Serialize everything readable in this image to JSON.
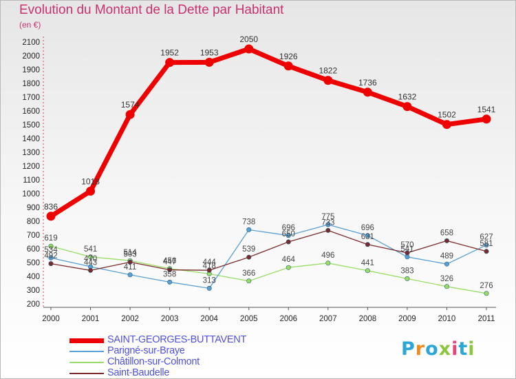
{
  "title": "Evolution du Montant de la Dette par Habitant",
  "subtitle": "(en €)",
  "logo": {
    "letters": [
      "P",
      "r",
      "o",
      "x",
      "i",
      "t",
      "i"
    ],
    "colors": [
      "#2ca6d8",
      "#ef8a1e",
      "#2ca6d8",
      "#8cc63f",
      "#e8447a",
      "#2ca6d8",
      "#8cc63f"
    ]
  },
  "chart_data": {
    "type": "line",
    "title": "Evolution du Montant de la Dette par Habitant",
    "ylabel": "(en €)",
    "x": [
      "2000",
      "2001",
      "2002",
      "2003",
      "2004",
      "2005",
      "2006",
      "2007",
      "2008",
      "2009",
      "2010",
      "2011"
    ],
    "ylim": [
      200,
      2100
    ],
    "yticks": [
      200,
      300,
      400,
      500,
      600,
      700,
      800,
      900,
      1000,
      1100,
      1200,
      1300,
      1400,
      1500,
      1600,
      1700,
      1800,
      1900,
      2000,
      2100
    ],
    "grid": false,
    "legend": "bottom-left",
    "series": [
      {
        "name": "SAINT-GEORGES-BUTTAVENT",
        "color": "#ee0000",
        "values": [
          836,
          1018,
          1574,
          1952,
          1953,
          2050,
          1926,
          1822,
          1736,
          1632,
          1502,
          1541
        ],
        "labels": [
          "836",
          "1018",
          "1574",
          "1952",
          "1953",
          "2050",
          "1926",
          "1822",
          "1736",
          "1632",
          "1502",
          "1541"
        ]
      },
      {
        "name": "Parigné-sur-Braye",
        "color": "#5a9fd4",
        "values": [
          534,
          470,
          411,
          358,
          313,
          738,
          696,
          775,
          696,
          541,
          489,
          627
        ],
        "labels": [
          "534",
          "470",
          "411",
          "358",
          "313",
          "738",
          "696",
          "775",
          "696",
          "541",
          "489",
          "627"
        ]
      },
      {
        "name": "Châtillon-sur-Colmont",
        "color": "#99dd66",
        "values": [
          619,
          541,
          514,
          456,
          418,
          366,
          464,
          496,
          441,
          383,
          326,
          276
        ],
        "labels": [
          "619",
          "541",
          "514",
          "456",
          "418",
          "366",
          "464",
          "496",
          "441",
          "383",
          "326",
          "276"
        ]
      },
      {
        "name": "Saint-Baudelle",
        "color": "#7a2a2a",
        "values": [
          492,
          443,
          503,
          447,
          444,
          539,
          650,
          733,
          631,
          570,
          658,
          581
        ],
        "labels": [
          "492",
          "443",
          "503",
          "447",
          "444",
          "539",
          "650",
          "733",
          "631",
          "570",
          "658",
          "581"
        ]
      }
    ]
  }
}
